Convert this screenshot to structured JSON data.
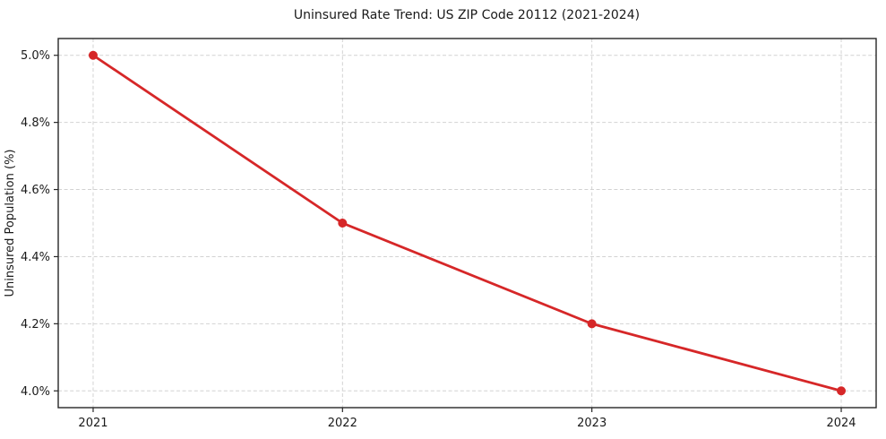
{
  "chart_data": {
    "type": "line",
    "title": "Uninsured Rate Trend: US ZIP Code 20112 (2021-2024)",
    "xlabel": "",
    "ylabel": "Uninsured Population (%)",
    "x": [
      2021,
      2022,
      2023,
      2024
    ],
    "xtick_labels": [
      "2021",
      "2022",
      "2023",
      "2024"
    ],
    "values": [
      5.0,
      4.5,
      4.2,
      4.0
    ],
    "ytick_values": [
      4.0,
      4.2,
      4.4,
      4.6,
      4.8,
      5.0
    ],
    "ytick_labels": [
      "4.0%",
      "4.2%",
      "4.4%",
      "4.6%",
      "4.8%",
      "5.0%"
    ],
    "ylim": [
      3.95,
      5.05
    ],
    "xlim": [
      2020.86,
      2024.14
    ],
    "grid": true,
    "grid_style": "dashed",
    "legend": "none",
    "colors": {
      "line": "#d62728",
      "marker": "#d62728",
      "grid": "#d2d2d2",
      "axis": "#262626",
      "background": "#ffffff"
    }
  }
}
